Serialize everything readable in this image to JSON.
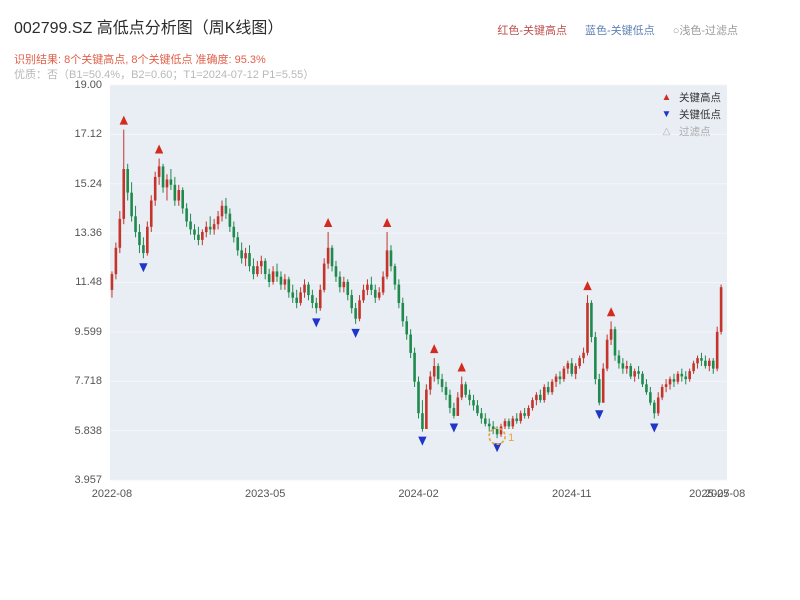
{
  "header": {
    "title": "002799.SZ 高低点分析图（周K线图）",
    "legend_top": [
      {
        "label": "红色-关键高点",
        "color": "#c0504d"
      },
      {
        "label": "蓝色-关键低点",
        "color": "#6080b5"
      },
      {
        "label": "○浅色-过滤点",
        "color": "#999999"
      }
    ],
    "subtitle1": "识别结果: 8个关键高点, 8个关键低点  准确度: 95.3%",
    "subtitle1_color": "#e0604a",
    "subtitle2": "优质：否（B1=50.4%，B2=0.60；T1=2024-07-12 P1=5.55）",
    "subtitle2_color": "#b8b8b8"
  },
  "legend_box": {
    "items": [
      {
        "label": "关键高点",
        "icon": "▲",
        "icon_color": "#d42b1f",
        "label_color": "#333333"
      },
      {
        "label": "关键低点",
        "icon": "▼",
        "icon_color": "#2036c8",
        "label_color": "#333333"
      },
      {
        "label": "过滤点",
        "icon": "△",
        "icon_color": "#b5b5b5",
        "label_color": "#aaaaaa"
      }
    ]
  },
  "chart_data": {
    "type": "candlestick",
    "title": "002799.SZ 高低点分析图（周K线图）",
    "symbol": "002799.SZ",
    "interval": "weekly",
    "ylim": [
      3.957,
      19.0
    ],
    "y_ticks": [
      "19.00",
      "17.12",
      "15.24",
      "13.36",
      "11.48",
      "9.599",
      "7.718",
      "5.838",
      "3.957"
    ],
    "y_tick_values": [
      19.0,
      17.12,
      15.24,
      13.36,
      11.48,
      9.599,
      7.718,
      5.838,
      3.957
    ],
    "x_ticks": [
      {
        "index": 0,
        "label": "2022-08"
      },
      {
        "index": 39,
        "label": "2023-05"
      },
      {
        "index": 78,
        "label": "2024-02"
      },
      {
        "index": 117,
        "label": "2024-11"
      },
      {
        "index": 152,
        "label": "2025-07"
      },
      {
        "index": 156,
        "label": "2025-08"
      }
    ],
    "up_color": "#c4342b",
    "down_color": "#1f8a4e",
    "marker_high_color": "#d42b1f",
    "marker_low_color": "#2036c8",
    "grid_color": "#f4f6f9",
    "plot_bg": "#e9edf4",
    "ohlc": [
      [
        11.2,
        11.9,
        10.9,
        11.8
      ],
      [
        11.8,
        13.0,
        11.6,
        12.8
      ],
      [
        12.8,
        14.2,
        12.6,
        13.9
      ],
      [
        13.9,
        17.3,
        13.7,
        15.8
      ],
      [
        15.8,
        16.0,
        14.6,
        14.9
      ],
      [
        14.9,
        15.3,
        13.8,
        14.0
      ],
      [
        14.0,
        14.4,
        13.2,
        13.4
      ],
      [
        13.4,
        13.7,
        12.6,
        12.9
      ],
      [
        12.9,
        13.2,
        12.4,
        12.6
      ],
      [
        12.6,
        13.8,
        12.5,
        13.6
      ],
      [
        13.6,
        14.8,
        13.4,
        14.6
      ],
      [
        14.6,
        15.7,
        14.4,
        15.5
      ],
      [
        15.5,
        16.2,
        15.2,
        15.9
      ],
      [
        15.9,
        16.0,
        14.9,
        15.1
      ],
      [
        15.1,
        15.6,
        14.6,
        15.4
      ],
      [
        15.4,
        15.8,
        15.0,
        15.2
      ],
      [
        15.2,
        15.5,
        14.4,
        14.6
      ],
      [
        14.6,
        15.2,
        14.4,
        15.0
      ],
      [
        15.0,
        15.1,
        14.1,
        14.3
      ],
      [
        14.3,
        14.5,
        13.6,
        13.8
      ],
      [
        13.8,
        14.1,
        13.3,
        13.5
      ],
      [
        13.5,
        13.7,
        13.1,
        13.3
      ],
      [
        13.3,
        13.6,
        12.9,
        13.1
      ],
      [
        13.1,
        13.5,
        12.9,
        13.4
      ],
      [
        13.4,
        13.8,
        13.2,
        13.6
      ],
      [
        13.6,
        14.0,
        13.3,
        13.5
      ],
      [
        13.5,
        13.9,
        13.3,
        13.7
      ],
      [
        13.7,
        14.2,
        13.5,
        14.0
      ],
      [
        14.0,
        14.6,
        13.8,
        14.4
      ],
      [
        14.4,
        14.7,
        13.9,
        14.1
      ],
      [
        14.1,
        14.3,
        13.4,
        13.6
      ],
      [
        13.6,
        13.8,
        13.0,
        13.2
      ],
      [
        13.2,
        13.4,
        12.5,
        12.7
      ],
      [
        12.7,
        13.0,
        12.2,
        12.4
      ],
      [
        12.4,
        12.8,
        12.1,
        12.6
      ],
      [
        12.6,
        12.9,
        11.9,
        12.1
      ],
      [
        12.1,
        12.4,
        11.6,
        11.8
      ],
      [
        11.8,
        12.3,
        11.7,
        12.1
      ],
      [
        12.1,
        12.5,
        11.8,
        12.3
      ],
      [
        12.3,
        12.4,
        11.6,
        11.8
      ],
      [
        11.8,
        12.0,
        11.3,
        11.5
      ],
      [
        11.5,
        12.1,
        11.4,
        11.9
      ],
      [
        11.9,
        12.2,
        11.5,
        11.7
      ],
      [
        11.7,
        11.9,
        11.2,
        11.4
      ],
      [
        11.4,
        11.8,
        11.2,
        11.6
      ],
      [
        11.6,
        11.7,
        10.9,
        11.1
      ],
      [
        11.1,
        11.4,
        10.7,
        10.9
      ],
      [
        10.9,
        11.2,
        10.5,
        10.7
      ],
      [
        10.7,
        11.3,
        10.6,
        11.1
      ],
      [
        11.1,
        11.6,
        10.9,
        11.4
      ],
      [
        11.4,
        11.5,
        10.8,
        11.0
      ],
      [
        11.0,
        11.2,
        10.5,
        10.7
      ],
      [
        10.7,
        10.9,
        10.3,
        10.5
      ],
      [
        10.5,
        11.4,
        10.4,
        11.2
      ],
      [
        11.2,
        12.4,
        11.1,
        12.2
      ],
      [
        12.2,
        13.4,
        12.0,
        12.8
      ],
      [
        12.8,
        12.9,
        11.9,
        12.1
      ],
      [
        12.1,
        12.3,
        11.5,
        11.7
      ],
      [
        11.7,
        11.9,
        11.1,
        11.3
      ],
      [
        11.3,
        11.7,
        11.1,
        11.5
      ],
      [
        11.5,
        11.6,
        10.8,
        11.0
      ],
      [
        11.0,
        11.2,
        10.3,
        10.5
      ],
      [
        10.5,
        10.7,
        9.9,
        10.1
      ],
      [
        10.1,
        11.0,
        10.0,
        10.8
      ],
      [
        10.8,
        11.4,
        10.7,
        11.2
      ],
      [
        11.2,
        11.6,
        11.0,
        11.4
      ],
      [
        11.4,
        11.7,
        11.0,
        11.2
      ],
      [
        11.2,
        11.4,
        10.7,
        10.9
      ],
      [
        10.9,
        11.3,
        10.8,
        11.1
      ],
      [
        11.1,
        11.9,
        11.0,
        11.7
      ],
      [
        11.7,
        13.4,
        11.6,
        12.7
      ],
      [
        12.7,
        12.9,
        11.9,
        12.1
      ],
      [
        12.1,
        12.2,
        11.2,
        11.4
      ],
      [
        11.4,
        11.6,
        10.5,
        10.7
      ],
      [
        10.7,
        10.9,
        9.8,
        10.0
      ],
      [
        10.0,
        10.2,
        9.3,
        9.5
      ],
      [
        9.5,
        9.7,
        8.6,
        8.8
      ],
      [
        8.8,
        9.0,
        7.5,
        7.7
      ],
      [
        7.7,
        7.9,
        6.3,
        6.5
      ],
      [
        6.5,
        7.0,
        5.8,
        5.9
      ],
      [
        5.9,
        7.6,
        5.9,
        7.4
      ],
      [
        7.4,
        8.1,
        7.2,
        7.9
      ],
      [
        7.9,
        8.6,
        7.7,
        8.3
      ],
      [
        8.3,
        8.4,
        7.6,
        7.8
      ],
      [
        7.8,
        8.0,
        7.3,
        7.5
      ],
      [
        7.5,
        7.7,
        7.0,
        7.2
      ],
      [
        7.2,
        7.4,
        6.5,
        6.7
      ],
      [
        6.7,
        6.9,
        6.3,
        6.4
      ],
      [
        6.4,
        7.3,
        6.4,
        7.1
      ],
      [
        7.1,
        7.9,
        7.0,
        7.6
      ],
      [
        7.6,
        7.7,
        7.1,
        7.2
      ],
      [
        7.2,
        7.4,
        6.8,
        7.0
      ],
      [
        7.0,
        7.2,
        6.6,
        6.8
      ],
      [
        6.8,
        7.0,
        6.4,
        6.5
      ],
      [
        6.5,
        6.7,
        6.1,
        6.3
      ],
      [
        6.3,
        6.5,
        6.0,
        6.1
      ],
      [
        6.1,
        6.3,
        5.8,
        6.0
      ],
      [
        6.0,
        6.2,
        5.7,
        5.9
      ],
      [
        5.9,
        6.0,
        5.55,
        5.7
      ],
      [
        5.7,
        6.1,
        5.6,
        6.0
      ],
      [
        6.0,
        6.3,
        5.9,
        6.2
      ],
      [
        6.2,
        6.3,
        5.9,
        6.0
      ],
      [
        6.0,
        6.4,
        5.9,
        6.3
      ],
      [
        6.3,
        6.5,
        6.1,
        6.2
      ],
      [
        6.2,
        6.6,
        6.1,
        6.5
      ],
      [
        6.5,
        6.7,
        6.3,
        6.4
      ],
      [
        6.4,
        6.8,
        6.3,
        6.7
      ],
      [
        6.7,
        7.1,
        6.6,
        7.0
      ],
      [
        7.0,
        7.3,
        6.8,
        7.2
      ],
      [
        7.2,
        7.4,
        6.9,
        7.0
      ],
      [
        7.0,
        7.6,
        6.9,
        7.5
      ],
      [
        7.5,
        7.7,
        7.2,
        7.3
      ],
      [
        7.3,
        7.8,
        7.2,
        7.7
      ],
      [
        7.7,
        8.0,
        7.5,
        7.9
      ],
      [
        7.9,
        8.1,
        7.6,
        7.8
      ],
      [
        7.8,
        8.3,
        7.7,
        8.2
      ],
      [
        8.2,
        8.5,
        8.0,
        8.4
      ],
      [
        8.4,
        8.6,
        7.9,
        8.0
      ],
      [
        8.0,
        8.4,
        7.8,
        8.3
      ],
      [
        8.3,
        8.7,
        8.2,
        8.6
      ],
      [
        8.6,
        9.0,
        8.4,
        8.8
      ],
      [
        8.8,
        11.0,
        8.7,
        10.7
      ],
      [
        10.7,
        10.8,
        9.2,
        9.4
      ],
      [
        9.4,
        9.6,
        7.6,
        7.8
      ],
      [
        7.8,
        8.0,
        6.8,
        6.9
      ],
      [
        6.9,
        8.4,
        6.9,
        8.2
      ],
      [
        8.2,
        9.5,
        8.1,
        9.3
      ],
      [
        9.3,
        10.0,
        9.1,
        9.7
      ],
      [
        9.7,
        9.8,
        8.5,
        8.7
      ],
      [
        8.7,
        8.9,
        8.2,
        8.4
      ],
      [
        8.4,
        8.6,
        8.0,
        8.2
      ],
      [
        8.2,
        8.5,
        8.0,
        8.3
      ],
      [
        8.3,
        8.4,
        7.8,
        7.9
      ],
      [
        7.9,
        8.2,
        7.7,
        8.1
      ],
      [
        8.1,
        8.3,
        7.8,
        8.0
      ],
      [
        8.0,
        8.1,
        7.5,
        7.6
      ],
      [
        7.6,
        7.8,
        7.2,
        7.3
      ],
      [
        7.3,
        7.5,
        6.8,
        6.9
      ],
      [
        6.9,
        7.0,
        6.3,
        6.5
      ],
      [
        6.5,
        7.3,
        6.4,
        7.1
      ],
      [
        7.1,
        7.6,
        7.0,
        7.5
      ],
      [
        7.5,
        7.8,
        7.3,
        7.6
      ],
      [
        7.6,
        7.9,
        7.4,
        7.8
      ],
      [
        7.8,
        8.0,
        7.5,
        7.7
      ],
      [
        7.7,
        8.1,
        7.6,
        8.0
      ],
      [
        8.0,
        8.2,
        7.7,
        7.9
      ],
      [
        7.9,
        8.1,
        7.6,
        7.8
      ],
      [
        7.8,
        8.2,
        7.7,
        8.1
      ],
      [
        8.1,
        8.5,
        8.0,
        8.4
      ],
      [
        8.4,
        8.7,
        8.2,
        8.6
      ],
      [
        8.6,
        8.8,
        8.3,
        8.5
      ],
      [
        8.5,
        8.7,
        8.2,
        8.3
      ],
      [
        8.3,
        8.6,
        8.1,
        8.5
      ],
      [
        8.5,
        8.6,
        8.0,
        8.2
      ],
      [
        8.2,
        9.8,
        8.1,
        9.6
      ],
      [
        9.6,
        11.4,
        9.5,
        11.3
      ]
    ],
    "key_highs": [
      {
        "i": 3,
        "p": 17.3
      },
      {
        "i": 12,
        "p": 16.2
      },
      {
        "i": 55,
        "p": 13.4
      },
      {
        "i": 70,
        "p": 13.4
      },
      {
        "i": 82,
        "p": 8.6
      },
      {
        "i": 89,
        "p": 7.9
      },
      {
        "i": 121,
        "p": 11.0
      },
      {
        "i": 127,
        "p": 10.0
      }
    ],
    "key_lows": [
      {
        "i": 8,
        "p": 12.4
      },
      {
        "i": 52,
        "p": 10.3
      },
      {
        "i": 62,
        "p": 9.9
      },
      {
        "i": 79,
        "p": 5.8
      },
      {
        "i": 87,
        "p": 6.3
      },
      {
        "i": 98,
        "p": 5.55
      },
      {
        "i": 124,
        "p": 6.8
      },
      {
        "i": 138,
        "p": 6.3
      }
    ],
    "filter_point": {
      "i": 98,
      "p": 5.55,
      "label": "1",
      "color": "#e8a33d"
    }
  }
}
